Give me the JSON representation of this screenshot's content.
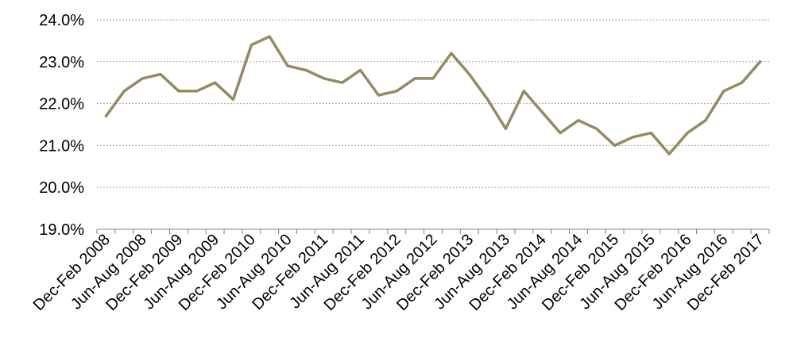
{
  "chart_data": {
    "type": "line",
    "title": "",
    "xlabel": "",
    "ylabel": "",
    "ylim": [
      19.0,
      24.0
    ],
    "y_ticks": [
      "19.0%",
      "20.0%",
      "21.0%",
      "22.0%",
      "23.0%",
      "24.0%"
    ],
    "y_tick_values": [
      19.0,
      20.0,
      21.0,
      22.0,
      23.0,
      24.0
    ],
    "grid": "horizontal",
    "legend": "none",
    "x_tick_labels": [
      "Dec-Feb 2008",
      "Jun-Aug 2008",
      "Dec-Feb 2009",
      "Jun-Aug 2009",
      "Dec-Feb 2010",
      "Jun-Aug 2010",
      "Dec-Feb 2011",
      "Jun-Aug 2011",
      "Dec-Feb 2012",
      "Jun-Aug 2012",
      "Dec-Feb 2013",
      "Jun-Aug 2013",
      "Dec-Feb 2014",
      "Jun-Aug 2014",
      "Dec-Feb 2015",
      "Jun-Aug 2015",
      "Dec-Feb 2016",
      "Jun-Aug 2016",
      "Dec-Feb 2017"
    ],
    "series": [
      {
        "color": "#958b62",
        "values": [
          21.7,
          22.3,
          22.6,
          22.7,
          22.3,
          22.3,
          22.5,
          22.1,
          23.4,
          23.6,
          22.9,
          22.8,
          22.6,
          22.5,
          22.8,
          22.2,
          22.3,
          22.6,
          22.6,
          23.2,
          22.7,
          22.1,
          21.4,
          22.3,
          21.8,
          21.3,
          21.6,
          21.4,
          21.0,
          21.2,
          21.3,
          20.8,
          21.3,
          21.6,
          22.3,
          22.5,
          23.0
        ]
      }
    ]
  }
}
